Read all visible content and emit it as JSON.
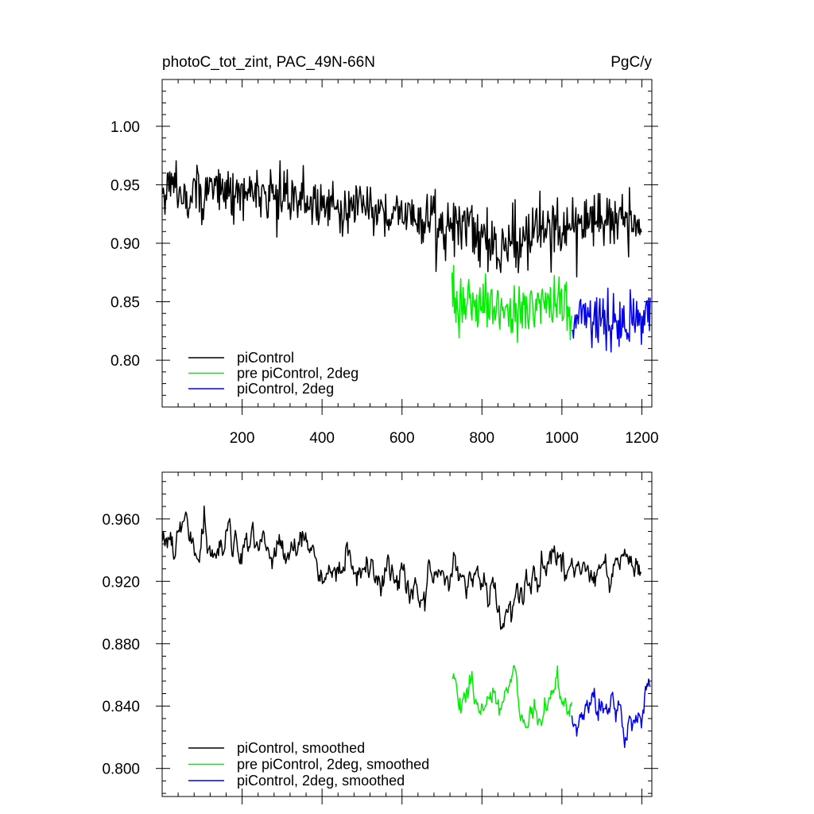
{
  "header": {
    "title": "photoC_tot_zint, PAC_49N-66N",
    "units": "PgC/y"
  },
  "colors": {
    "piControl": "#000000",
    "pre_piControl_2deg": "#00ee00",
    "piControl_2deg": "#0000ee"
  },
  "chart_data": [
    {
      "type": "line",
      "x_range": [
        0,
        1225
      ],
      "ylim": [
        0.76,
        1.04
      ],
      "xticks": [
        200,
        400,
        600,
        800,
        1000,
        1200
      ],
      "xtick_labels": [
        "200",
        "400",
        "600",
        "800",
        "1000",
        "1200"
      ],
      "yticks": [
        0.8,
        0.85,
        0.9,
        0.95,
        1.0
      ],
      "ytick_labels": [
        "0.80",
        "0.85",
        "0.90",
        "0.95",
        "1.00"
      ],
      "legend_position": "bottom-left",
      "series": [
        {
          "name": "piControl",
          "color": "#000000",
          "x_range": [
            1,
            1200
          ],
          "mean_profile": [
            [
              0,
              0.945
            ],
            [
              200,
              0.943
            ],
            [
              400,
              0.935
            ],
            [
              600,
              0.925
            ],
            [
              700,
              0.915
            ],
            [
              800,
              0.91
            ],
            [
              850,
              0.895
            ],
            [
              900,
              0.905
            ],
            [
              1000,
              0.915
            ],
            [
              1100,
              0.918
            ],
            [
              1200,
              0.915
            ]
          ],
          "noise_amplitude": 0.022
        },
        {
          "name": "pre piControl, 2deg",
          "color": "#00ee00",
          "x_range": [
            725,
            1025
          ],
          "mean_profile": [
            [
              725,
              0.855
            ],
            [
              800,
              0.85
            ],
            [
              900,
              0.84
            ],
            [
              1000,
              0.845
            ],
            [
              1025,
              0.842
            ]
          ],
          "noise_amplitude": 0.022
        },
        {
          "name": "piControl, 2deg",
          "color": "#0000ee",
          "x_range": [
            1025,
            1222
          ],
          "mean_profile": [
            [
              1025,
              0.838
            ],
            [
              1100,
              0.835
            ],
            [
              1150,
              0.828
            ],
            [
              1222,
              0.838
            ]
          ],
          "noise_amplitude": 0.022
        }
      ]
    },
    {
      "type": "line",
      "x_range": [
        0,
        1225
      ],
      "ylim": [
        0.782,
        0.99
      ],
      "yticks": [
        0.8,
        0.84,
        0.88,
        0.92,
        0.96
      ],
      "ytick_labels": [
        "0.800",
        "0.840",
        "0.880",
        "0.920",
        "0.960"
      ],
      "legend_position": "bottom-left",
      "series": [
        {
          "name": "piControl, smoothed",
          "color": "#000000",
          "x_range": [
            1,
            1200
          ],
          "mean_profile": [
            [
              0,
              0.945
            ],
            [
              200,
              0.943
            ],
            [
              400,
              0.935
            ],
            [
              600,
              0.925
            ],
            [
              700,
              0.923
            ],
            [
              800,
              0.918
            ],
            [
              850,
              0.906
            ],
            [
              900,
              0.912
            ],
            [
              1000,
              0.925
            ],
            [
              1100,
              0.928
            ],
            [
              1200,
              0.925
            ]
          ],
          "noise_amplitude": 0.014
        },
        {
          "name": "pre piControl, 2deg, smoothed",
          "color": "#00ee00",
          "x_range": [
            725,
            1025
          ],
          "mean_profile": [
            [
              725,
              0.855
            ],
            [
              800,
              0.85
            ],
            [
              900,
              0.835
            ],
            [
              1000,
              0.848
            ],
            [
              1025,
              0.842
            ]
          ],
          "noise_amplitude": 0.014
        },
        {
          "name": "piControl, 2deg, smoothed",
          "color": "#0000ee",
          "x_range": [
            1025,
            1222
          ],
          "mean_profile": [
            [
              1025,
              0.838
            ],
            [
              1100,
              0.838
            ],
            [
              1170,
              0.826
            ],
            [
              1222,
              0.845
            ]
          ],
          "noise_amplitude": 0.014
        }
      ]
    }
  ]
}
